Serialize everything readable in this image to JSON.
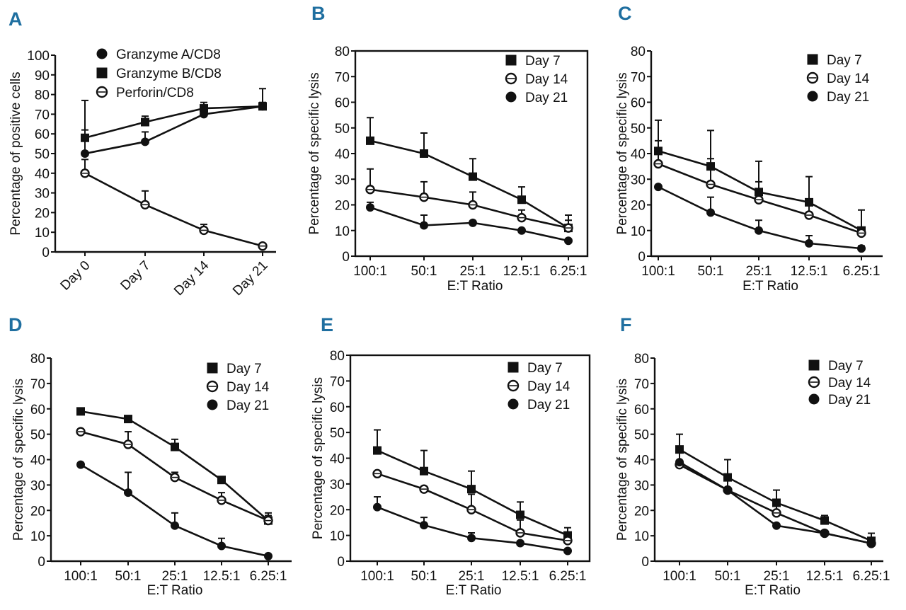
{
  "chart_data": [
    {
      "panel": "A",
      "type": "line",
      "categories": [
        "Day 0",
        "Day 7",
        "Day 14",
        "Day 21"
      ],
      "xlabel": "",
      "ylabel": "Percentage of positive cells",
      "ylim": [
        0,
        100
      ],
      "yticks": [
        0,
        10,
        20,
        30,
        40,
        50,
        60,
        70,
        80,
        90,
        100
      ],
      "legend_position": "top",
      "series": [
        {
          "name": "Granzyme A/CD8",
          "marker": "filled-circle",
          "values": [
            50,
            56,
            70,
            74
          ],
          "errors": [
            27,
            5,
            2,
            9
          ]
        },
        {
          "name": "Granzyme B/CD8",
          "marker": "filled-square",
          "values": [
            58,
            66,
            73,
            74
          ],
          "errors": [
            4,
            3,
            3,
            2
          ]
        },
        {
          "name": "Perforin/CD8",
          "marker": "open-circle",
          "values": [
            40,
            24,
            11,
            3
          ],
          "errors": [
            7,
            7,
            3,
            0
          ]
        }
      ]
    },
    {
      "panel": "B",
      "type": "line",
      "categories": [
        "100:1",
        "50:1",
        "25:1",
        "12.5:1",
        "6.25:1"
      ],
      "xlabel": "E:T Ratio",
      "ylabel": "Percentage of specific lysis",
      "ylim": [
        0,
        80
      ],
      "yticks": [
        0,
        10,
        20,
        30,
        40,
        50,
        60,
        70,
        80
      ],
      "legend_position": "top-right",
      "series": [
        {
          "name": "Day 7",
          "marker": "filled-square",
          "values": [
            45,
            40,
            31,
            22,
            11
          ],
          "errors": [
            9,
            8,
            7,
            5,
            5
          ]
        },
        {
          "name": "Day 14",
          "marker": "open-circle",
          "values": [
            26,
            23,
            20,
            15,
            11
          ],
          "errors": [
            8,
            6,
            5,
            3,
            3
          ]
        },
        {
          "name": "Day 21",
          "marker": "filled-circle",
          "values": [
            19,
            12,
            13,
            10,
            6
          ],
          "errors": [
            2,
            4,
            0,
            0,
            0
          ]
        }
      ]
    },
    {
      "panel": "C",
      "type": "line",
      "categories": [
        "100:1",
        "50:1",
        "25:1",
        "12.5:1",
        "6.25:1"
      ],
      "xlabel": "E:T Ratio",
      "ylabel": "Percentage of specific lysis",
      "ylim": [
        0,
        80
      ],
      "yticks": [
        0,
        10,
        20,
        30,
        40,
        50,
        60,
        70,
        80
      ],
      "legend_position": "top-right",
      "series": [
        {
          "name": "Day 7",
          "marker": "filled-square",
          "values": [
            41,
            35,
            25,
            21,
            10
          ],
          "errors": [
            12,
            14,
            12,
            10,
            8
          ]
        },
        {
          "name": "Day 14",
          "marker": "open-circle",
          "values": [
            36,
            28,
            22,
            16,
            9
          ],
          "errors": [
            9,
            10,
            7,
            4,
            2
          ]
        },
        {
          "name": "Day 21",
          "marker": "filled-circle",
          "values": [
            27,
            17,
            10,
            5,
            3
          ],
          "errors": [
            0,
            6,
            4,
            3,
            1
          ]
        }
      ]
    },
    {
      "panel": "D",
      "type": "line",
      "categories": [
        "100:1",
        "50:1",
        "25:1",
        "12.5:1",
        "6.25:1"
      ],
      "xlabel": "E:T Ratio",
      "ylabel": "Percentage of specific lysis",
      "ylim": [
        0,
        80
      ],
      "yticks": [
        0,
        10,
        20,
        30,
        40,
        50,
        60,
        70,
        80
      ],
      "legend_position": "top-right",
      "series": [
        {
          "name": "Day 7",
          "marker": "filled-square",
          "values": [
            59,
            56,
            45,
            32,
            16
          ],
          "errors": [
            0,
            1,
            3,
            0,
            3
          ]
        },
        {
          "name": "Day 14",
          "marker": "open-circle",
          "values": [
            51,
            46,
            33,
            24,
            16
          ],
          "errors": [
            0,
            5,
            2,
            3,
            2
          ]
        },
        {
          "name": "Day 21",
          "marker": "filled-circle",
          "values": [
            38,
            27,
            14,
            6,
            2
          ],
          "errors": [
            0,
            8,
            5,
            3,
            0
          ]
        }
      ]
    },
    {
      "panel": "E",
      "type": "line",
      "categories": [
        "100:1",
        "50:1",
        "25:1",
        "12.5:1",
        "6.25:1"
      ],
      "xlabel": "E:T Ratio",
      "ylabel": "Percentage of specific lysis",
      "ylim": [
        0,
        80
      ],
      "yticks": [
        0,
        10,
        20,
        30,
        40,
        50,
        60,
        70,
        80
      ],
      "legend_position": "top-right",
      "series": [
        {
          "name": "Day 7",
          "marker": "filled-square",
          "values": [
            43,
            35,
            28,
            18,
            10
          ],
          "errors": [
            8,
            8,
            7,
            5,
            3
          ]
        },
        {
          "name": "Day 14",
          "marker": "open-circle",
          "values": [
            34,
            28,
            20,
            11,
            8
          ],
          "errors": [
            0,
            0,
            6,
            5,
            3
          ]
        },
        {
          "name": "Day 21",
          "marker": "filled-circle",
          "values": [
            21,
            14,
            9,
            7,
            4
          ],
          "errors": [
            4,
            3,
            2,
            0,
            0
          ]
        }
      ]
    },
    {
      "panel": "F",
      "type": "line",
      "categories": [
        "100:1",
        "50:1",
        "25:1",
        "12.5:1",
        "6.25:1"
      ],
      "xlabel": "E:T Ratio",
      "ylabel": "Percentage of specific lysis",
      "ylim": [
        0,
        80
      ],
      "yticks": [
        0,
        10,
        20,
        30,
        40,
        50,
        60,
        70,
        80
      ],
      "legend_position": "top-left",
      "series": [
        {
          "name": "Day 7",
          "marker": "filled-square",
          "values": [
            44,
            33,
            23,
            16,
            8
          ],
          "errors": [
            6,
            7,
            5,
            2,
            3
          ]
        },
        {
          "name": "Day 14",
          "marker": "open-circle",
          "values": [
            38,
            28,
            19,
            11,
            7
          ],
          "errors": [
            5,
            4,
            5,
            0,
            2
          ]
        },
        {
          "name": "Day 21",
          "marker": "filled-circle",
          "values": [
            39,
            28,
            14,
            11,
            7
          ],
          "errors": [
            0,
            0,
            0,
            0,
            0
          ]
        }
      ]
    }
  ]
}
